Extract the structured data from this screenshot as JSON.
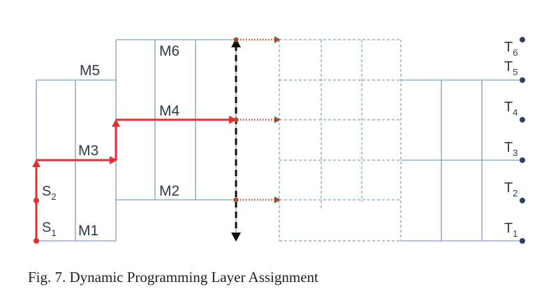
{
  "figure": {
    "layer_labels": {
      "m1": "M1",
      "m2": "M2",
      "m3": "M3",
      "m4": "M4",
      "m5": "M5",
      "m6": "M6"
    },
    "sources": [
      {
        "main": "S",
        "sub": "1"
      },
      {
        "main": "S",
        "sub": "2"
      }
    ],
    "targets": [
      {
        "main": "T",
        "sub": "1"
      },
      {
        "main": "T",
        "sub": "2"
      },
      {
        "main": "T",
        "sub": "3"
      },
      {
        "main": "T",
        "sub": "4"
      },
      {
        "main": "T",
        "sub": "5"
      },
      {
        "main": "T",
        "sub": "6"
      }
    ],
    "colors": {
      "grid": "#7f9fc4",
      "path": "#e03030",
      "cut": "#111111",
      "arrow": "#a0522d",
      "pin": "#2d3f6e"
    }
  },
  "caption": {
    "text": "Fig. 7.  Dynamic Programming Layer Assignment"
  }
}
